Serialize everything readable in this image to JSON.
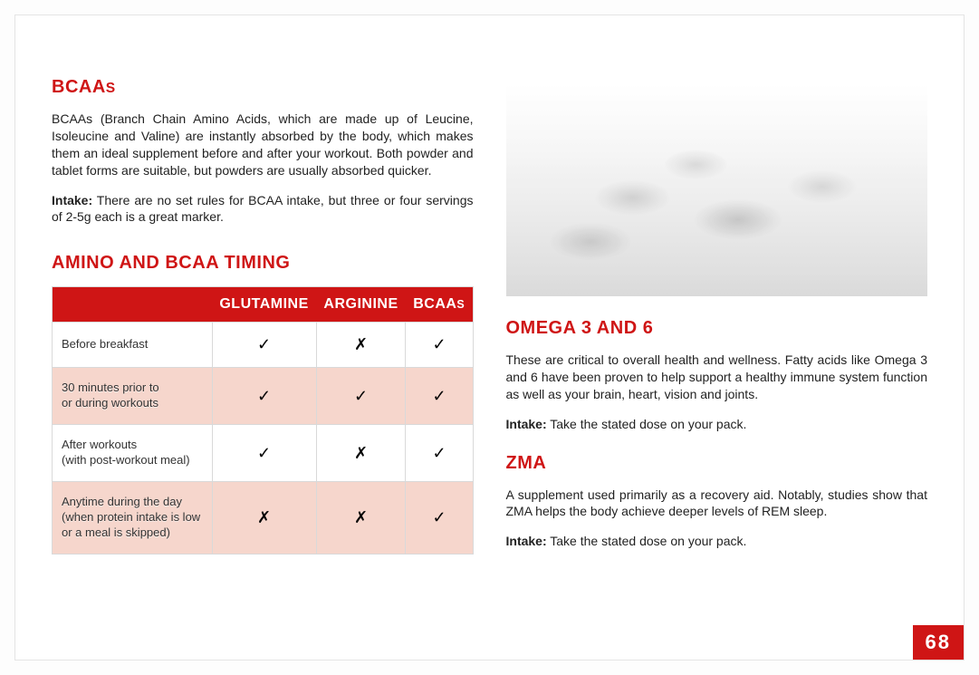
{
  "left": {
    "bcaas": {
      "heading_main": "BCAA",
      "heading_suffix": "S",
      "para": "BCAAs (Branch Chain Amino Acids, which are made up of Leucine, Isoleucine and Valine) are instantly absorbed by the body, which makes them an ideal supplement before and after your workout. Both powder and tablet forms are suitable, but powders are usually absorbed quicker.",
      "intake_label": "Intake:",
      "intake_text": " There are no set rules for BCAA intake, but three or four servings of 2-5g each is a great marker."
    },
    "timing": {
      "heading": "AMINO AND BCAA TIMING",
      "columns": [
        "",
        "GLUTAMINE",
        "ARGININE",
        "BCAAs"
      ],
      "col_suffix_small": "S",
      "rows": [
        {
          "label": "Before breakfast",
          "cells": [
            "✓",
            "✗",
            "✓"
          ],
          "alt": false
        },
        {
          "label": "30 minutes prior to\nor during workouts",
          "cells": [
            "✓",
            "✓",
            "✓"
          ],
          "alt": true
        },
        {
          "label": "After workouts\n(with post-workout meal)",
          "cells": [
            "✓",
            "✗",
            "✓"
          ],
          "alt": false
        },
        {
          "label": "Anytime during the day\n(when protein intake is low\nor a meal is skipped)",
          "cells": [
            "✗",
            "✗",
            "✓"
          ],
          "alt": true
        }
      ]
    }
  },
  "right": {
    "omega": {
      "heading": "OMEGA 3 AND 6",
      "para": "These are critical to overall health and wellness. Fatty acids like Omega 3 and 6 have been proven to help support a healthy immune system function as well as your brain, heart, vision and joints.",
      "intake_label": "Intake:",
      "intake_text": " Take the stated dose on your pack."
    },
    "zma": {
      "heading": "ZMA",
      "para": "A supplement used primarily as a recovery aid. Notably, studies show that ZMA helps the body achieve deeper levels of REM sleep.",
      "intake_label": "Intake:",
      "intake_text": " Take the stated dose on your pack."
    }
  },
  "page_number": "68",
  "colors": {
    "accent": "#cf1515",
    "alt_row": "#f6d6cc",
    "border": "#d9d9d9",
    "text": "#222222"
  }
}
